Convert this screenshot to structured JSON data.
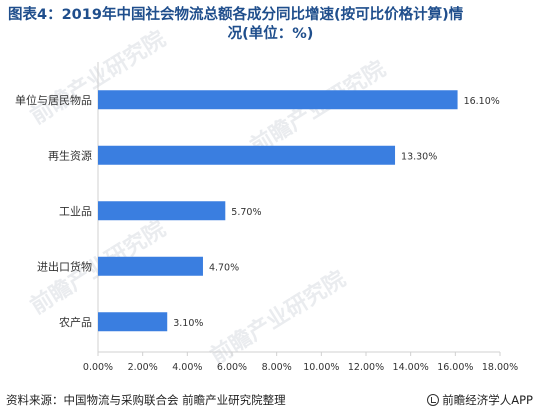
{
  "title_line1": "图表4：2019年中国社会物流总额各成分同比增速(按可比价格计算)情",
  "title_line2": "况(单位：%)",
  "source": "资料来源：中国物流与采购联合会 前瞻产业研究院整理",
  "brand": "前瞻经济学人APP",
  "watermark": "前瞻产业研究院",
  "colors": {
    "bar": "#3a7ee0",
    "title": "#1f4e8c",
    "axis": "#d0d0d0"
  },
  "chart_data": {
    "type": "bar",
    "orientation": "horizontal",
    "categories": [
      "单位与居民物品",
      "再生资源",
      "工业品",
      "进出口货物",
      "农产品"
    ],
    "values": [
      16.1,
      13.3,
      5.7,
      4.7,
      3.1
    ],
    "value_labels": [
      "16.10%",
      "13.30%",
      "5.70%",
      "4.70%",
      "3.10%"
    ],
    "xlim": [
      0,
      18
    ],
    "xticks": [
      0,
      2,
      4,
      6,
      8,
      10,
      12,
      14,
      16,
      18
    ],
    "xtick_labels": [
      "0.00%",
      "2.00%",
      "4.00%",
      "6.00%",
      "8.00%",
      "10.00%",
      "12.00%",
      "14.00%",
      "16.00%",
      "18.00%"
    ],
    "grid": false,
    "legend": "none"
  }
}
